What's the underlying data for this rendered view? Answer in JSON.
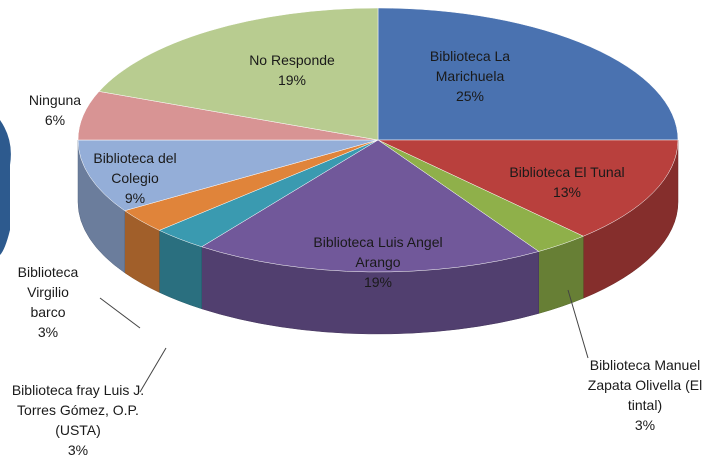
{
  "chart_data": {
    "type": "pie",
    "categories": [
      "Biblioteca La Marichuela",
      "Biblioteca El Tunal",
      "Biblioteca Manuel Zapata Olivella (El tintal)",
      "Biblioteca Luis Angel Arango",
      "Biblioteca fray Luis J. Torres Gómez, O.P. (USTA)",
      "Biblioteca Virgilio barco",
      "Biblioteca del Colegio",
      "Ninguna",
      "No Responde"
    ],
    "values": [
      25,
      13,
      3,
      19,
      3,
      3,
      9,
      6,
      19
    ],
    "value_labels": [
      "25%",
      "13%",
      "3%",
      "19%",
      "3%",
      "3%",
      "9%",
      "6%",
      "19%"
    ],
    "colors": [
      "#4a72b0",
      "#b9403d",
      "#8fb04a",
      "#71589a",
      "#3a9ab0",
      "#e0843a",
      "#94aed8",
      "#d89494",
      "#b8cc90"
    ]
  }
}
